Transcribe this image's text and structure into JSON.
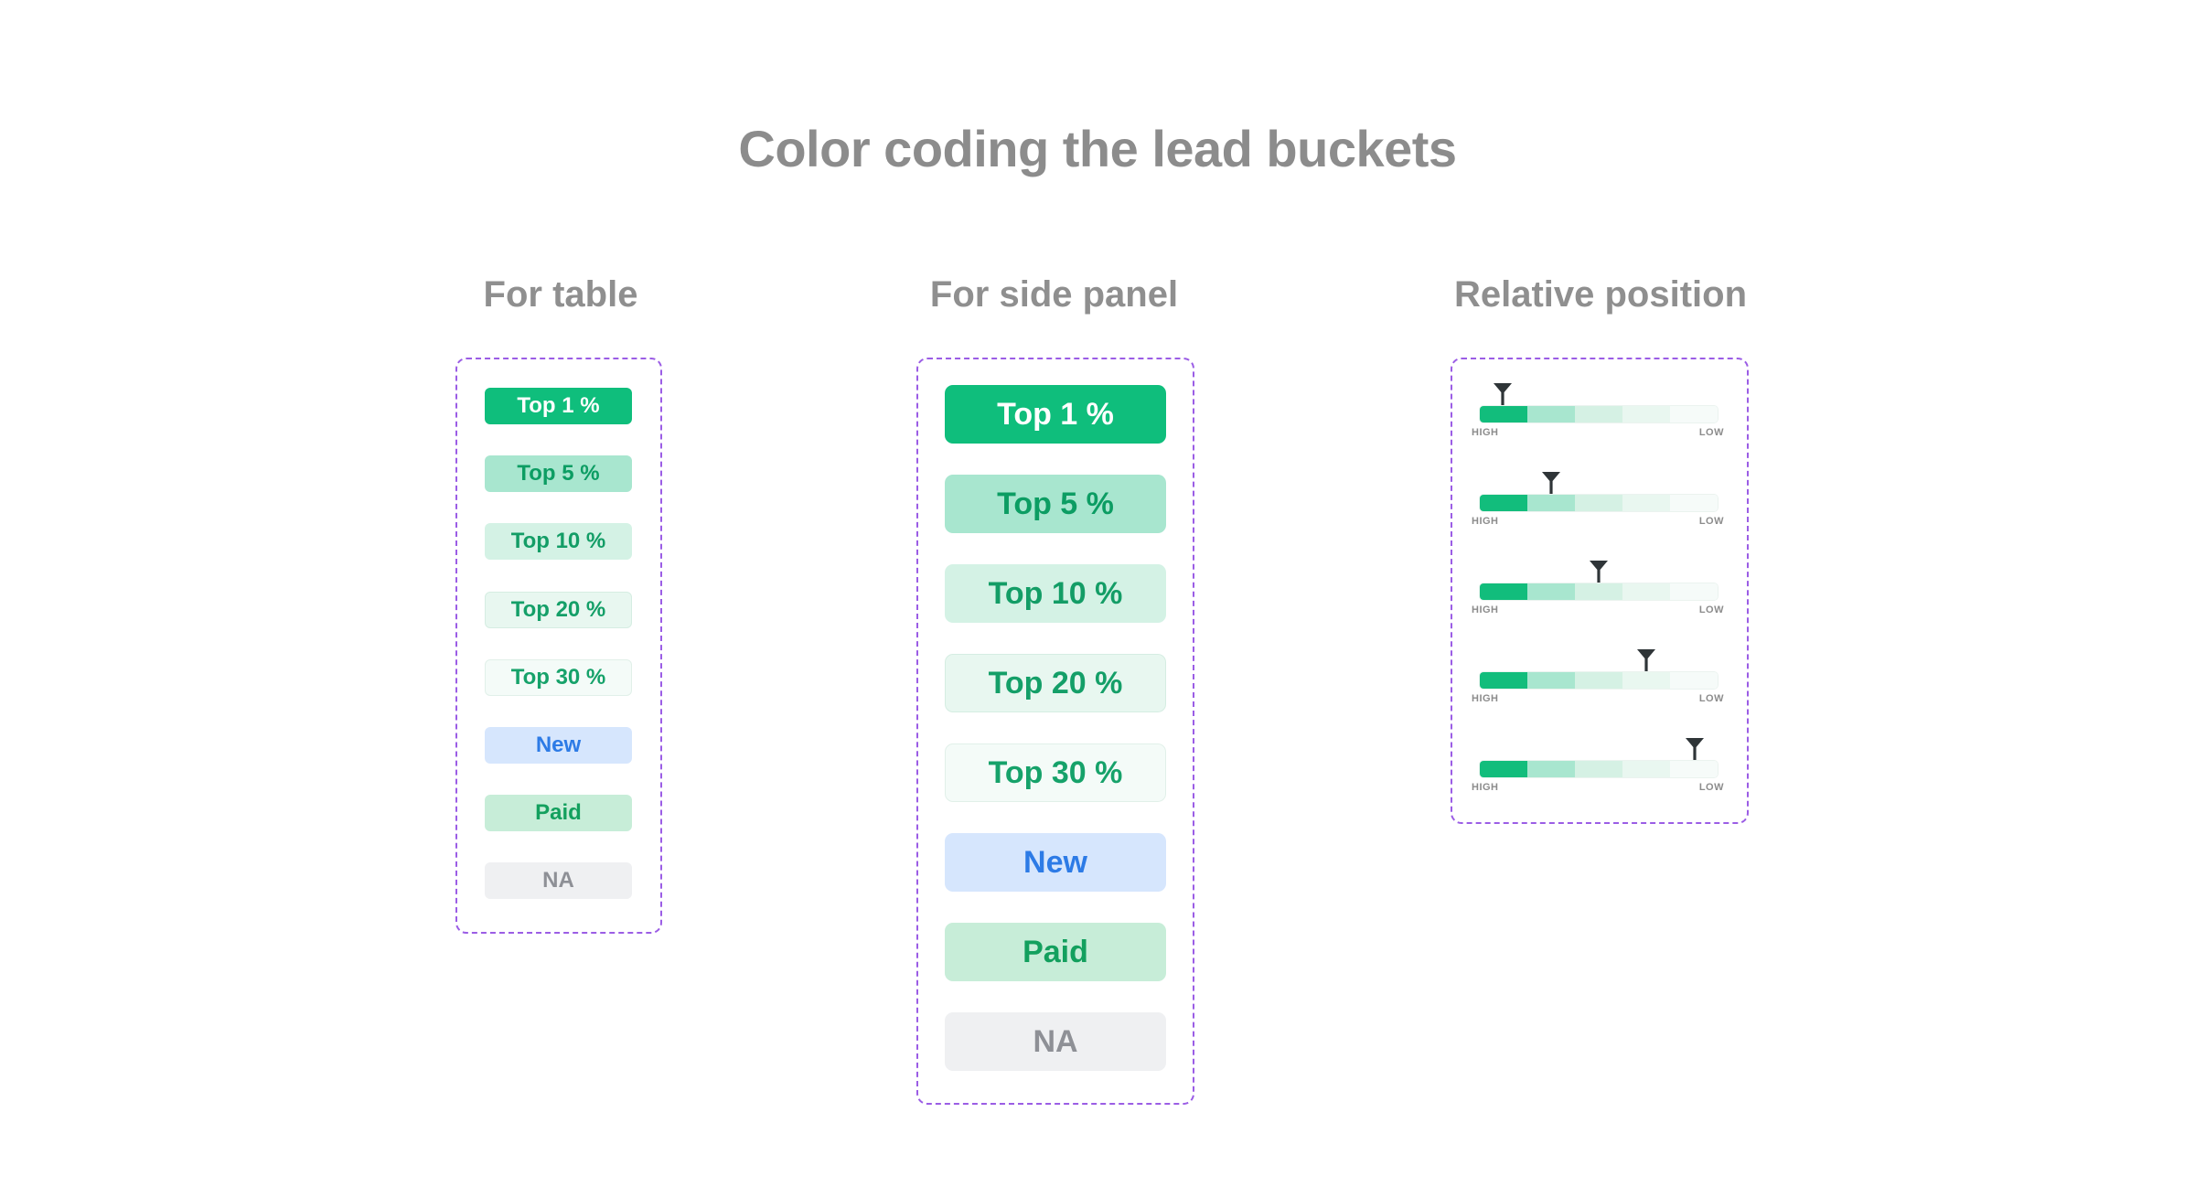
{
  "title": "Color coding the lead buckets",
  "sections": {
    "table": {
      "title": "For table",
      "items": [
        "Top 1 %",
        "Top 5 %",
        "Top 10 %",
        "Top 20 %",
        "Top 30 %",
        "New",
        "Paid",
        "NA"
      ]
    },
    "side_panel": {
      "title": "For side panel",
      "items": [
        "Top 1 %",
        "Top 5 %",
        "Top 10 %",
        "Top 20 %",
        "Top 30 %",
        "New",
        "Paid",
        "NA"
      ]
    },
    "relative_position": {
      "title": "Relative position",
      "high_label": "HIGH",
      "low_label": "LOW",
      "segments": 5,
      "marker_segments": [
        1,
        2,
        3,
        4,
        5
      ],
      "marker_icon": "funnel-marker-icon"
    }
  },
  "colors": {
    "frame": "#9b5de5",
    "top1": "#0fbe7c",
    "top5": "#a8e6cf",
    "top10": "#d4f2e5",
    "top20": "#e8f7f0",
    "top30": "#f4fbf8",
    "new": "#d6e6fd",
    "paid": "#c7edd8",
    "na": "#eff0f2"
  }
}
